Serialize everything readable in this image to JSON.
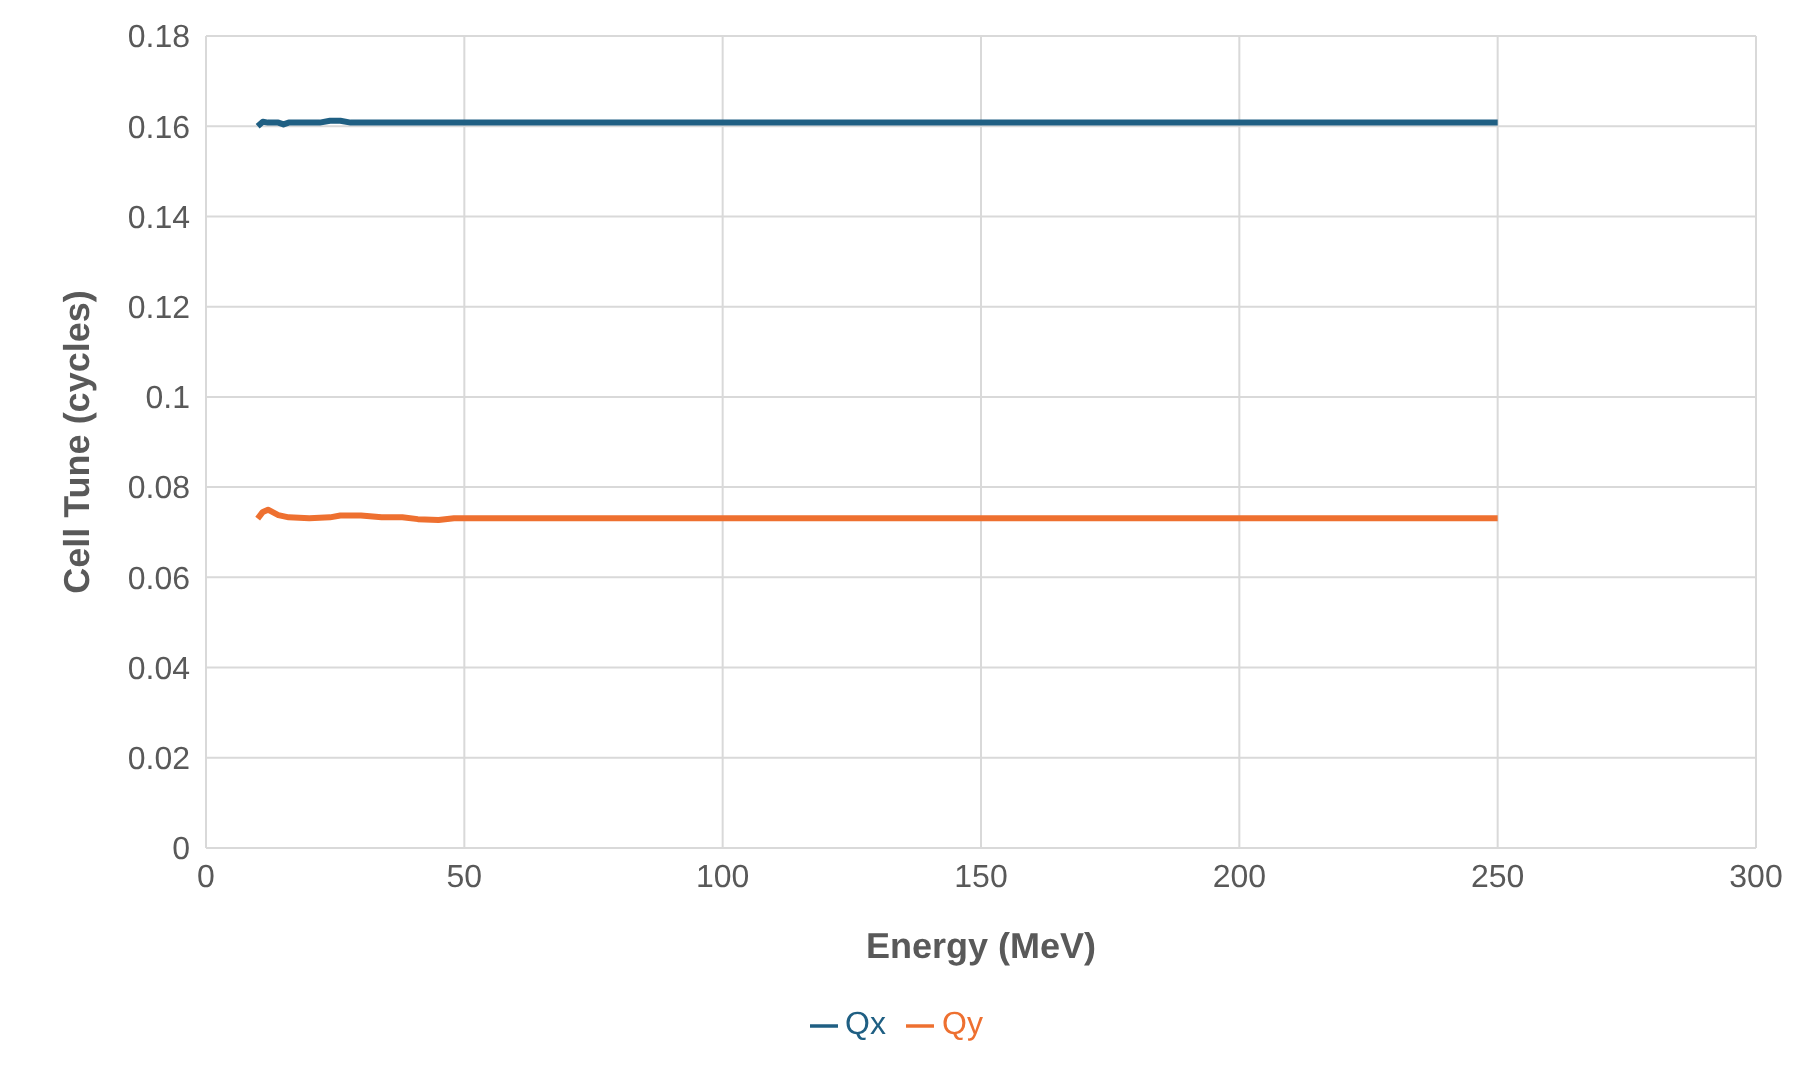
{
  "chart_data": {
    "type": "line",
    "xlabel": "Energy (MeV)",
    "ylabel": "Cell Tune (cycles)",
    "xlim": [
      0,
      300
    ],
    "xticks": [
      0,
      50,
      100,
      150,
      200,
      250,
      300
    ],
    "ylim": [
      0,
      0.18
    ],
    "yticks": [
      0,
      0.02,
      0.04,
      0.06,
      0.08,
      0.1,
      0.12,
      0.14,
      0.16,
      0.18
    ],
    "grid": true,
    "legend": "bottom",
    "marker": "none",
    "line_style": "solid",
    "series": [
      {
        "name": "Qx",
        "color": "#1f5f83",
        "x": [
          10,
          11,
          12,
          14,
          15,
          16,
          18,
          22,
          24,
          26,
          28,
          30,
          50,
          100,
          150,
          200,
          250
        ],
        "values": [
          0.16,
          0.161,
          0.1608,
          0.1608,
          0.1604,
          0.1608,
          0.1608,
          0.1608,
          0.1612,
          0.1612,
          0.1608,
          0.1608,
          0.1608,
          0.1608,
          0.1608,
          0.1608,
          0.1608
        ]
      },
      {
        "name": "Qy",
        "color": "#ee7030",
        "x": [
          10,
          11,
          12,
          14,
          16,
          20,
          24,
          26,
          30,
          34,
          38,
          41,
          45,
          48,
          50,
          100,
          150,
          200,
          250
        ],
        "values": [
          0.073,
          0.0745,
          0.075,
          0.0738,
          0.0733,
          0.0731,
          0.0733,
          0.0737,
          0.0737,
          0.0733,
          0.0733,
          0.0729,
          0.0727,
          0.0731,
          0.0731,
          0.0731,
          0.0731,
          0.0731,
          0.0731
        ]
      }
    ]
  }
}
